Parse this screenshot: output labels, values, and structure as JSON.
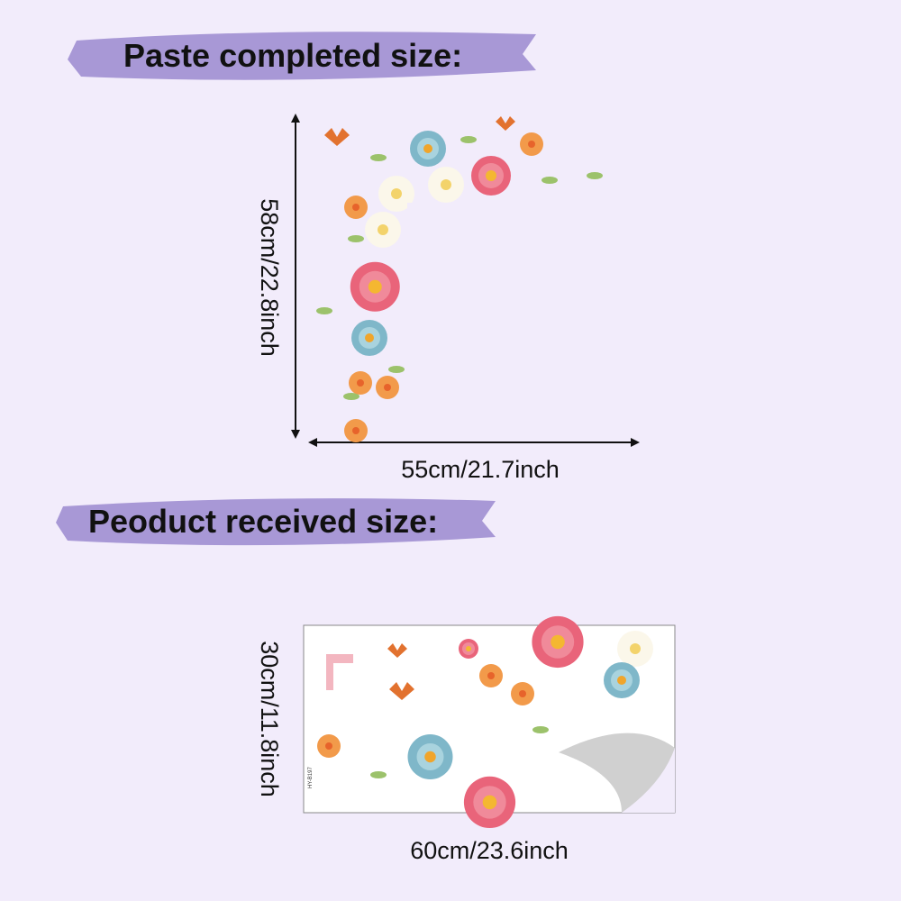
{
  "header": {
    "title": "Paste completed size:"
  },
  "completed": {
    "height_label": "58cm/22.8inch",
    "width_label": "55cm/21.7inch"
  },
  "received": {
    "title": "Peoduct received size:",
    "height_label": "30cm/11.8inch",
    "width_label": "60cm/23.6inch",
    "code": "HY-B197"
  }
}
